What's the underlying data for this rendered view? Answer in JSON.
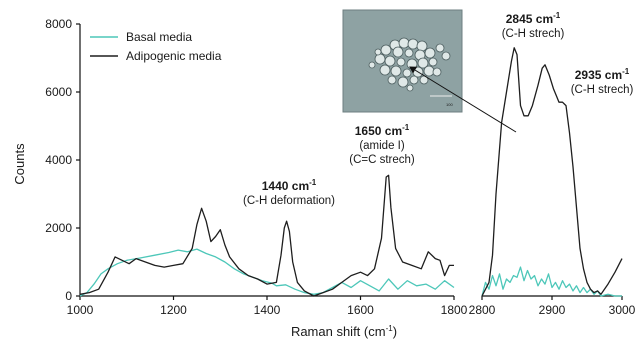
{
  "chart_data": {
    "type": "line",
    "title": "",
    "xlabel": "Raman shift (cm",
    "xlabel_sup": "-1",
    "xlabel_suffix": ")",
    "ylabel": "Counts",
    "ylim": [
      0,
      8000
    ],
    "yticks": [
      0,
      2000,
      4000,
      6000,
      8000
    ],
    "ytick_labels": [
      "0",
      "2000",
      "4000",
      "6000",
      "8000"
    ],
    "x_panels": [
      {
        "xlim": [
          1000,
          1800
        ],
        "xticks": [
          1000,
          1200,
          1400,
          1600,
          1800
        ],
        "xtick_labels": [
          "1000",
          "1200",
          "1400",
          "1600",
          "1800"
        ]
      },
      {
        "xlim": [
          2800,
          3000
        ],
        "xticks": [
          2800,
          2900,
          3000
        ],
        "xtick_labels": [
          "2800",
          "2900",
          "3000"
        ]
      }
    ],
    "grid": false,
    "legend_position": "top-left",
    "series": [
      {
        "name": "Basal media",
        "color": "#4dc7b9",
        "panels": [
          [
            [
              1000,
              0
            ],
            [
              1015,
              100
            ],
            [
              1030,
              350
            ],
            [
              1045,
              650
            ],
            [
              1060,
              800
            ],
            [
              1080,
              950
            ],
            [
              1100,
              1050
            ],
            [
              1130,
              1120
            ],
            [
              1160,
              1200
            ],
            [
              1190,
              1280
            ],
            [
              1210,
              1350
            ],
            [
              1230,
              1300
            ],
            [
              1250,
              1380
            ],
            [
              1270,
              1250
            ],
            [
              1290,
              1150
            ],
            [
              1310,
              1000
            ],
            [
              1330,
              800
            ],
            [
              1350,
              650
            ],
            [
              1370,
              550
            ],
            [
              1390,
              450
            ],
            [
              1410,
              380
            ],
            [
              1420,
              300
            ],
            [
              1440,
              330
            ],
            [
              1460,
              200
            ],
            [
              1480,
              100
            ],
            [
              1500,
              50
            ],
            [
              1520,
              100
            ],
            [
              1540,
              250
            ],
            [
              1560,
              400
            ],
            [
              1580,
              250
            ],
            [
              1600,
              450
            ],
            [
              1620,
              300
            ],
            [
              1640,
              150
            ],
            [
              1660,
              500
            ],
            [
              1680,
              200
            ],
            [
              1700,
              450
            ],
            [
              1720,
              300
            ],
            [
              1740,
              350
            ],
            [
              1760,
              200
            ],
            [
              1780,
              450
            ],
            [
              1800,
              250
            ]
          ],
          [
            [
              2800,
              0
            ],
            [
              2805,
              400
            ],
            [
              2810,
              200
            ],
            [
              2815,
              600
            ],
            [
              2820,
              300
            ],
            [
              2825,
              650
            ],
            [
              2830,
              200
            ],
            [
              2835,
              500
            ],
            [
              2840,
              400
            ],
            [
              2845,
              600
            ],
            [
              2850,
              550
            ],
            [
              2855,
              850
            ],
            [
              2860,
              450
            ],
            [
              2865,
              750
            ],
            [
              2870,
              500
            ],
            [
              2875,
              600
            ],
            [
              2880,
              300
            ],
            [
              2885,
              500
            ],
            [
              2890,
              350
            ],
            [
              2895,
              650
            ],
            [
              2900,
              250
            ],
            [
              2905,
              400
            ],
            [
              2910,
              200
            ],
            [
              2915,
              450
            ],
            [
              2920,
              250
            ],
            [
              2925,
              350
            ],
            [
              2930,
              150
            ],
            [
              2935,
              300
            ],
            [
              2940,
              100
            ],
            [
              2945,
              250
            ],
            [
              2950,
              100
            ],
            [
              2955,
              200
            ],
            [
              2960,
              50
            ],
            [
              2965,
              150
            ],
            [
              2970,
              0
            ],
            [
              2980,
              50
            ],
            [
              2990,
              0
            ],
            [
              3000,
              0
            ]
          ]
        ]
      },
      {
        "name": "Adipogenic media",
        "color": "#1e1e1e",
        "panels": [
          [
            [
              1000,
              50
            ],
            [
              1020,
              100
            ],
            [
              1040,
              200
            ],
            [
              1060,
              700
            ],
            [
              1075,
              1150
            ],
            [
              1090,
              1050
            ],
            [
              1105,
              950
            ],
            [
              1120,
              1100
            ],
            [
              1140,
              1000
            ],
            [
              1160,
              900
            ],
            [
              1180,
              850
            ],
            [
              1200,
              900
            ],
            [
              1220,
              950
            ],
            [
              1240,
              1400
            ],
            [
              1250,
              2100
            ],
            [
              1260,
              2580
            ],
            [
              1270,
              2200
            ],
            [
              1280,
              1600
            ],
            [
              1290,
              1750
            ],
            [
              1300,
              1950
            ],
            [
              1310,
              1500
            ],
            [
              1320,
              1150
            ],
            [
              1340,
              800
            ],
            [
              1360,
              600
            ],
            [
              1380,
              500
            ],
            [
              1400,
              350
            ],
            [
              1420,
              400
            ],
            [
              1430,
              1200
            ],
            [
              1437,
              2000
            ],
            [
              1442,
              2200
            ],
            [
              1448,
              1900
            ],
            [
              1455,
              1000
            ],
            [
              1465,
              400
            ],
            [
              1480,
              150
            ],
            [
              1500,
              0
            ],
            [
              1520,
              100
            ],
            [
              1540,
              200
            ],
            [
              1560,
              400
            ],
            [
              1580,
              600
            ],
            [
              1600,
              700
            ],
            [
              1615,
              600
            ],
            [
              1630,
              800
            ],
            [
              1645,
              1700
            ],
            [
              1655,
              3500
            ],
            [
              1660,
              3550
            ],
            [
              1665,
              2600
            ],
            [
              1675,
              1400
            ],
            [
              1690,
              1000
            ],
            [
              1710,
              900
            ],
            [
              1730,
              800
            ],
            [
              1745,
              1300
            ],
            [
              1760,
              1100
            ],
            [
              1770,
              1050
            ],
            [
              1780,
              600
            ],
            [
              1790,
              900
            ],
            [
              1800,
              900
            ]
          ],
          [
            [
              2800,
              0
            ],
            [
              2810,
              400
            ],
            [
              2815,
              1200
            ],
            [
              2820,
              3000
            ],
            [
              2828,
              5100
            ],
            [
              2835,
              6000
            ],
            [
              2842,
              6900
            ],
            [
              2846,
              7300
            ],
            [
              2850,
              7100
            ],
            [
              2855,
              5600
            ],
            [
              2860,
              5300
            ],
            [
              2866,
              5300
            ],
            [
              2872,
              5600
            ],
            [
              2880,
              6200
            ],
            [
              2886,
              6700
            ],
            [
              2890,
              6800
            ],
            [
              2896,
              6500
            ],
            [
              2902,
              6100
            ],
            [
              2906,
              5900
            ],
            [
              2910,
              5700
            ],
            [
              2915,
              5700
            ],
            [
              2920,
              5600
            ],
            [
              2925,
              4800
            ],
            [
              2930,
              3800
            ],
            [
              2935,
              2600
            ],
            [
              2940,
              1400
            ],
            [
              2945,
              800
            ],
            [
              2950,
              400
            ],
            [
              2955,
              200
            ],
            [
              2960,
              100
            ],
            [
              2965,
              150
            ],
            [
              2970,
              50
            ],
            [
              2980,
              350
            ],
            [
              2990,
              700
            ],
            [
              3000,
              1100
            ]
          ]
        ]
      }
    ],
    "annotations": [
      {
        "name": "1440",
        "x": 1440,
        "y": 2200,
        "bold": "1440 cm",
        "sup": "-1",
        "lines": [
          "(C-H deformation)"
        ]
      },
      {
        "name": "1650",
        "x": 1655,
        "y": 3550,
        "bold": "1650 cm",
        "sup": "-1",
        "lines": [
          "(amide  I)",
          "(C=C strech)"
        ]
      },
      {
        "name": "2845",
        "x": 2846,
        "y": 7300,
        "bold": "2845 cm",
        "sup": "-1",
        "lines": [
          "(C-H strech)"
        ]
      },
      {
        "name": "2935",
        "x": 2935,
        "y": 5700,
        "bold": "2935 cm",
        "sup": "-1",
        "lines": [
          "(C-H strech)"
        ]
      }
    ],
    "inset": {
      "type": "micrograph",
      "content": "lipid droplets",
      "scale_bar_text": "100"
    }
  }
}
